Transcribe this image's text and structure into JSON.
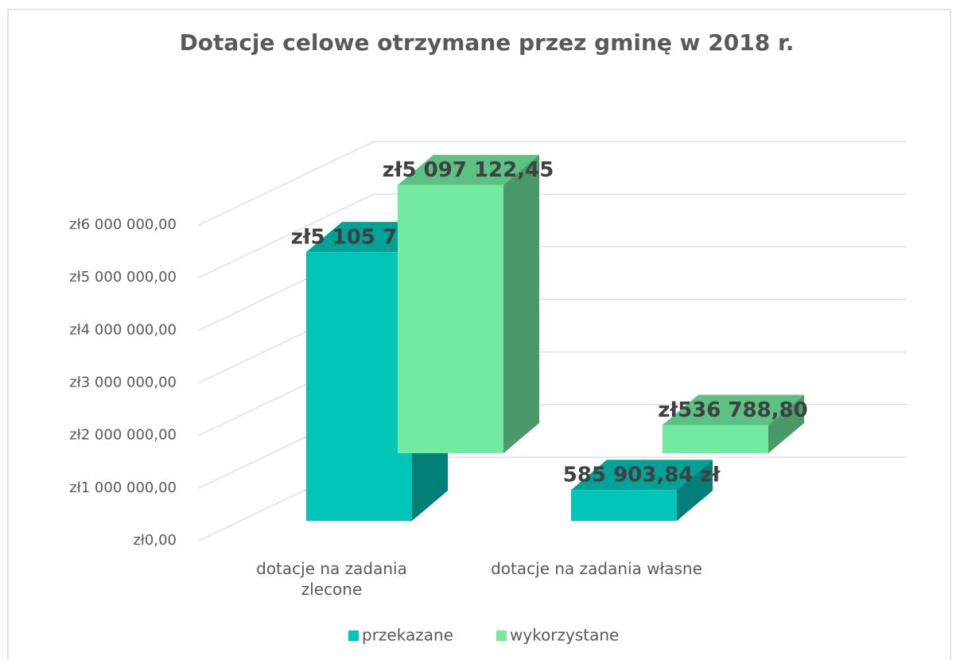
{
  "chart_data": {
    "type": "bar3d",
    "title": "Dotacje celowe otrzymane przez gminę w 2018 r.",
    "categories": [
      "dotacje na zadania zlecone",
      "dotacje na zadania własne"
    ],
    "series": [
      {
        "name": "przekazane",
        "color": "#00c5b9",
        "values": [
          5105744.57,
          585903.84
        ],
        "value_labels": [
          "zł5 105 744,57",
          "585 903,84 zł"
        ]
      },
      {
        "name": "wykorzystane",
        "color": "#72eba0",
        "values": [
          5097122.45,
          536788.8
        ],
        "value_labels": [
          "zł5 097 122,45",
          "zł536 788,80"
        ]
      }
    ],
    "ylim": [
      0,
      6000000
    ],
    "yticks": [
      {
        "value": 0,
        "label": "zł0,00"
      },
      {
        "value": 1000000,
        "label": "zł1 000 000,00"
      },
      {
        "value": 2000000,
        "label": "zł2 000 000,00"
      },
      {
        "value": 3000000,
        "label": "zł3 000 000,00"
      },
      {
        "value": 4000000,
        "label": "zł4 000 000,00"
      },
      {
        "value": 5000000,
        "label": "zł5 000 000,00"
      },
      {
        "value": 6000000,
        "label": "zł6 000 000,00"
      }
    ],
    "grid": true,
    "legend": "bottom"
  }
}
